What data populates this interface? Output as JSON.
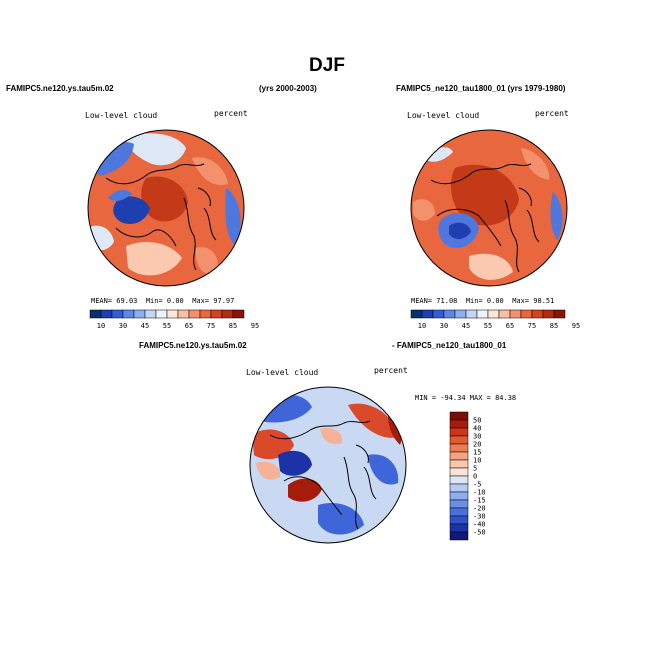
{
  "figure": {
    "title": "DJF"
  },
  "panel1": {
    "case_title": "FAMIPC5.ne120.ys.tau5m.02",
    "years": "(yrs 2000-2003)",
    "variable": "Low-level cloud",
    "units": "percent",
    "stats": {
      "mean_label": "MEAN=",
      "mean": "69.03",
      "min_label": "Min=",
      "min": "0.00",
      "max_label": "Max=",
      "max": "97.97"
    }
  },
  "panel2": {
    "case_title": "FAMIPC5_ne120_tau1800_01 (yrs 1979-1980)",
    "variable": "Low-level cloud",
    "units": "percent",
    "stats": {
      "mean_label": "MEAN=",
      "mean": "71.08",
      "min_label": "Min=",
      "min": "0.00",
      "max_label": "Max=",
      "max": "98.51"
    }
  },
  "panel3": {
    "case_title_a": "FAMIPC5.ne120.ys.tau5m.02",
    "case_title_b": "- FAMIPC5_ne120_tau1800_01",
    "variable": "Low-level cloud",
    "units": "percent",
    "range_text": "MIN = -94.34  MAX =  84.38"
  },
  "colorbar_abs": {
    "labels": [
      "10",
      "30",
      "45",
      "55",
      "65",
      "75",
      "85",
      "95"
    ],
    "colors": [
      "#08306b",
      "#1d3fb0",
      "#2f5fd8",
      "#5d88e8",
      "#8fb0f0",
      "#c3d6f7",
      "#eef3fb",
      "#fde5d8",
      "#f9bfa3",
      "#f2916c",
      "#e8673f",
      "#d4431e",
      "#b52a10",
      "#8b1305"
    ]
  },
  "colorbar_diff": {
    "labels": [
      "50",
      "40",
      "30",
      "20",
      "15",
      "10",
      "5",
      "0",
      "-5",
      "-10",
      "-15",
      "-20",
      "-30",
      "-40",
      "-50"
    ],
    "colors": [
      "#7a0d04",
      "#a61c0b",
      "#cc3518",
      "#e45a2f",
      "#f07c52",
      "#f6a27e",
      "#fbc6ab",
      "#fde3d5",
      "#dbe6f8",
      "#b6cbf3",
      "#8eaeee",
      "#6a90e6",
      "#4a70dc",
      "#2e52c9",
      "#1c33a8",
      "#0d1a7a"
    ]
  },
  "map_colors": {
    "abs_land": "#e8673f",
    "abs_dark": "#c43a18",
    "abs_mid": "#f2916c",
    "abs_light": "#fbc8b0",
    "abs_pale": "#dfe8f7",
    "abs_blue": "#4f77de",
    "abs_deep": "#1d3fb0",
    "diff_neutral": "#c9d8f3",
    "diff_blue": "#3f66d8",
    "diff_deep": "#1c33a8",
    "diff_red": "#d9492a",
    "diff_dark": "#a61c0b",
    "diff_pale": "#f6b296",
    "coast": "#000000"
  }
}
